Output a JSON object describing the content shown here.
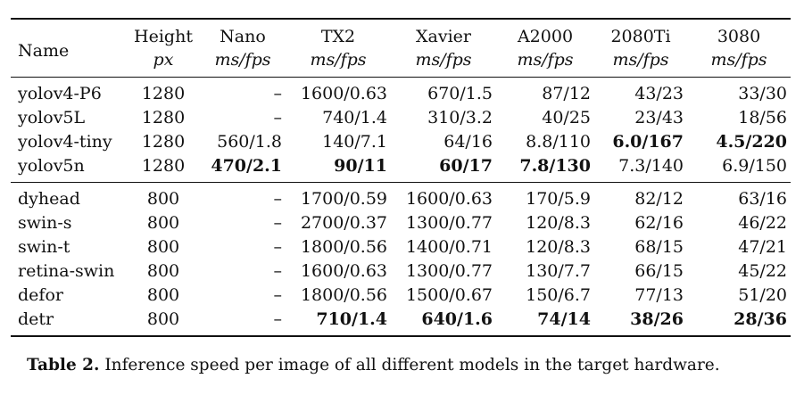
{
  "table": {
    "header_top": [
      "Name",
      "Height",
      "Nano",
      "TX2",
      "Xavier",
      "A2000",
      "2080Ti",
      "3080"
    ],
    "header_units": [
      "",
      "px",
      "ms/fps",
      "ms/fps",
      "ms/fps",
      "ms/fps",
      "ms/fps",
      "ms/fps"
    ],
    "group1": [
      {
        "name": "yolov4-P6",
        "height": "1280",
        "cells": [
          "–",
          "1600/0.63",
          "670/1.5",
          "87/12",
          "43/23",
          "33/30"
        ],
        "bold": [
          false,
          false,
          false,
          false,
          false,
          false
        ]
      },
      {
        "name": "yolov5L",
        "height": "1280",
        "cells": [
          "–",
          "740/1.4",
          "310/3.2",
          "40/25",
          "23/43",
          "18/56"
        ],
        "bold": [
          false,
          false,
          false,
          false,
          false,
          false
        ]
      },
      {
        "name": "yolov4-tiny",
        "height": "1280",
        "cells": [
          "560/1.8",
          "140/7.1",
          "64/16",
          "8.8/110",
          "6.0/167",
          "4.5/220"
        ],
        "bold": [
          false,
          false,
          false,
          false,
          true,
          true
        ]
      },
      {
        "name": "yolov5n",
        "height": "1280",
        "cells": [
          "470/2.1",
          "90/11",
          "60/17",
          "7.8/130",
          "7.3/140",
          "6.9/150"
        ],
        "bold": [
          true,
          true,
          true,
          true,
          false,
          false
        ]
      }
    ],
    "group2": [
      {
        "name": "dyhead",
        "height": "800",
        "cells": [
          "–",
          "1700/0.59",
          "1600/0.63",
          "170/5.9",
          "82/12",
          "63/16"
        ],
        "bold": [
          false,
          false,
          false,
          false,
          false,
          false
        ]
      },
      {
        "name": "swin-s",
        "height": "800",
        "cells": [
          "–",
          "2700/0.37",
          "1300/0.77",
          "120/8.3",
          "62/16",
          "46/22"
        ],
        "bold": [
          false,
          false,
          false,
          false,
          false,
          false
        ]
      },
      {
        "name": "swin-t",
        "height": "800",
        "cells": [
          "–",
          "1800/0.56",
          "1400/0.71",
          "120/8.3",
          "68/15",
          "47/21"
        ],
        "bold": [
          false,
          false,
          false,
          false,
          false,
          false
        ]
      },
      {
        "name": "retina-swin",
        "height": "800",
        "cells": [
          "–",
          "1600/0.63",
          "1300/0.77",
          "130/7.7",
          "66/15",
          "45/22"
        ],
        "bold": [
          false,
          false,
          false,
          false,
          false,
          false
        ]
      },
      {
        "name": "defor",
        "height": "800",
        "cells": [
          "–",
          "1800/0.56",
          "1500/0.67",
          "150/6.7",
          "77/13",
          "51/20"
        ],
        "bold": [
          false,
          false,
          false,
          false,
          false,
          false
        ]
      },
      {
        "name": "detr",
        "height": "800",
        "cells": [
          "–",
          "710/1.4",
          "640/1.6",
          "74/14",
          "38/26",
          "28/36"
        ],
        "bold": [
          false,
          true,
          true,
          true,
          true,
          true
        ]
      }
    ]
  },
  "caption": {
    "label": "Table 2.",
    "text": " Inference speed per image of all different models in the target hardware."
  }
}
